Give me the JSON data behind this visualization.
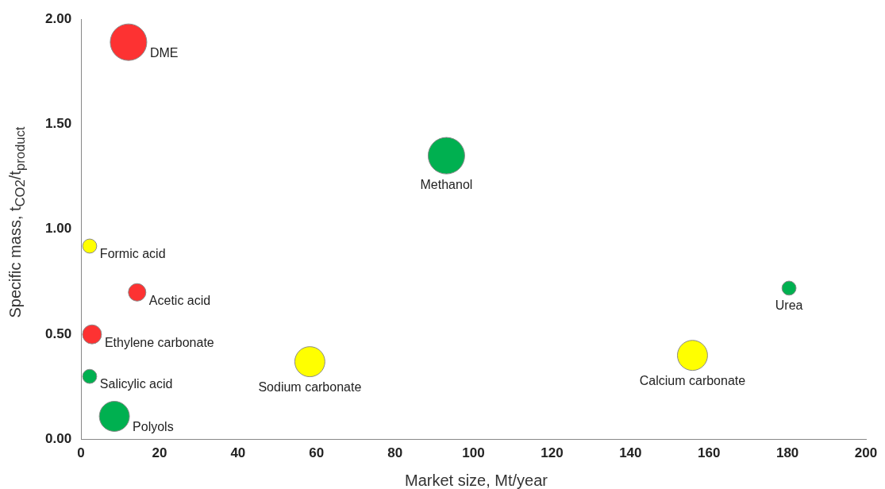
{
  "chart_data": {
    "type": "bubble",
    "xlabel": "Market size, Mt/year",
    "ylabel": "Specific mass, t$_{CO2}$/t$_{product}$",
    "x": [
      12.1,
      93.1,
      2.2,
      14.3,
      2.8,
      2.2,
      8.5,
      58.3,
      155.8,
      180.4
    ],
    "values": [
      1.89,
      1.35,
      0.92,
      0.7,
      0.5,
      0.3,
      0.11,
      0.37,
      0.4,
      0.72
    ],
    "sizes": [
      1,
      1,
      0.15,
      0.23,
      0.27,
      0.15,
      0.68,
      0.68,
      0.68,
      0.15
    ],
    "colors": [
      "#fd3232",
      "#00b050",
      "#ffff00",
      "#fd3232",
      "#fd3232",
      "#00b050",
      "#00b050",
      "#ffff00",
      "#ffff00",
      "#00b050"
    ],
    "xlim": [
      0,
      200
    ],
    "xticks": [
      0,
      20,
      40,
      60,
      80,
      100,
      120,
      140,
      160,
      180,
      200
    ],
    "ylim": [
      0,
      2
    ],
    "yticks": [
      {
        "value": 0,
        "label": "0.00"
      },
      {
        "value": 0.5,
        "label": "0.50"
      },
      {
        "value": 1,
        "label": "1.00"
      },
      {
        "value": 1.5,
        "label": "1.50"
      },
      {
        "value": 2,
        "label": "2.00"
      }
    ],
    "grid": false,
    "legend": false,
    "annotations": [
      {
        "text": "DME",
        "x": 12.1,
        "y": 1.89
      },
      {
        "text": "Methanol",
        "x": 93.1,
        "y": 1.35
      },
      {
        "text": "Formic acid",
        "x": 2.2,
        "y": 0.92
      },
      {
        "text": "Acetic acid",
        "x": 14.3,
        "y": 0.7
      },
      {
        "text": "Ethylene carbonate",
        "x": 2.8,
        "y": 0.5
      },
      {
        "text": "Salicylic acid",
        "x": 2.2,
        "y": 0.3
      },
      {
        "text": "Polyols",
        "x": 8.5,
        "y": 0.11
      },
      {
        "text": "Sodium carbonate",
        "x": 58.3,
        "y": 0.37
      },
      {
        "text": "Calcium carbonate",
        "x": 155.8,
        "y": 0.4
      },
      {
        "text": "Urea",
        "x": 180.4,
        "y": 0.72
      }
    ]
  }
}
